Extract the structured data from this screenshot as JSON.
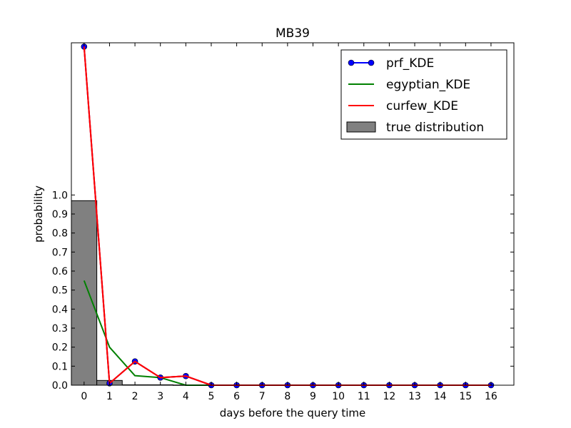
{
  "chart_data": {
    "type": "line",
    "title": "MB39",
    "xlabel": "days before the query time",
    "ylabel": "probability",
    "x": [
      0,
      1,
      2,
      3,
      4,
      5,
      6,
      7,
      8,
      9,
      10,
      11,
      12,
      13,
      14,
      15,
      16
    ],
    "xticks": [
      "0",
      "1",
      "2",
      "3",
      "4",
      "5",
      "6",
      "7",
      "8",
      "9",
      "10",
      "11",
      "12",
      "13",
      "14",
      "15",
      "16"
    ],
    "yticks": [
      "0.0",
      "0.1",
      "0.2",
      "0.3",
      "0.4",
      "0.5",
      "0.6",
      "0.7",
      "0.8",
      "0.9",
      "1.0"
    ],
    "xlim": [
      -0.5,
      16.9
    ],
    "ylim": [
      0,
      1.8
    ],
    "series": [
      {
        "name": "prf_KDE",
        "kind": "line-marker",
        "color": "#0000ff",
        "marker_color": "#0000ff",
        "values": [
          1.78,
          0.01,
          0.125,
          0.04,
          0.048,
          0.0,
          0.0,
          0.0,
          0.0,
          0.0,
          0.0,
          0.0,
          0.0,
          0.0,
          0.0,
          0.0,
          0.0
        ]
      },
      {
        "name": "egyptian_KDE",
        "kind": "line",
        "color": "#008000",
        "values": [
          0.55,
          0.2,
          0.05,
          0.04,
          0.0,
          0.0,
          0.0,
          0.0,
          0.0,
          0.0,
          0.0,
          0.0,
          0.0,
          0.0,
          0.0,
          0.0,
          0.0
        ]
      },
      {
        "name": "curfew_KDE",
        "kind": "line",
        "color": "#ff0000",
        "values": [
          1.78,
          0.01,
          0.125,
          0.04,
          0.048,
          0.0,
          0.0,
          0.0,
          0.0,
          0.0,
          0.0,
          0.0,
          0.0,
          0.0,
          0.0,
          0.0,
          0.0
        ]
      }
    ],
    "bars": {
      "name": "true distribution",
      "color": "#808080",
      "x": [
        0,
        1,
        2,
        3,
        4
      ],
      "values": [
        0.97,
        0.025,
        0.002,
        0.002,
        0.001
      ]
    },
    "legend_position": "top-right",
    "grid": false
  }
}
